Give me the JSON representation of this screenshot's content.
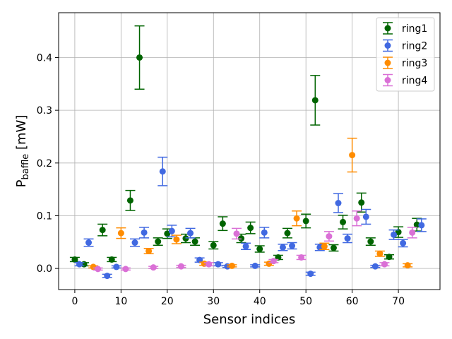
{
  "chart_data": {
    "type": "scatter",
    "xlabel": "Sensor indices",
    "ylabel_main": "P",
    "ylabel_sub": "baffle",
    "ylabel_unit": " [mW]",
    "xlim": [
      -3.5,
      79
    ],
    "ylim": [
      -0.04,
      0.485
    ],
    "x_ticks": [
      0,
      10,
      20,
      30,
      40,
      50,
      60,
      70
    ],
    "y_ticks": [
      0.0,
      0.1,
      0.2,
      0.3,
      0.4
    ],
    "y_tick_labels": [
      "0.0",
      "0.1",
      "0.2",
      "0.3",
      "0.4"
    ],
    "grid": true,
    "legend_position": "upper right",
    "series": [
      {
        "name": "ring1",
        "color": "#006400",
        "points": [
          [
            0,
            0.017,
            0.004
          ],
          [
            2,
            0.008,
            0.003
          ],
          [
            6,
            0.073,
            0.011
          ],
          [
            8,
            0.017,
            0.004
          ],
          [
            12,
            0.129,
            0.019
          ],
          [
            14,
            0.4,
            0.06
          ],
          [
            18,
            0.051,
            0.007
          ],
          [
            20,
            0.066,
            0.009
          ],
          [
            24,
            0.057,
            0.008
          ],
          [
            26,
            0.051,
            0.007
          ],
          [
            30,
            0.044,
            0.007
          ],
          [
            32,
            0.085,
            0.013
          ],
          [
            36,
            0.057,
            0.008
          ],
          [
            38,
            0.077,
            0.011
          ],
          [
            40,
            0.037,
            0.006
          ],
          [
            44,
            0.021,
            0.004
          ],
          [
            46,
            0.067,
            0.009
          ],
          [
            50,
            0.09,
            0.013
          ],
          [
            52,
            0.319,
            0.047
          ],
          [
            56,
            0.039,
            0.006
          ],
          [
            58,
            0.088,
            0.013
          ],
          [
            62,
            0.125,
            0.018
          ],
          [
            64,
            0.051,
            0.007
          ],
          [
            68,
            0.022,
            0.004
          ],
          [
            70,
            0.069,
            0.01
          ],
          [
            74,
            0.083,
            0.012
          ]
        ]
      },
      {
        "name": "ring2",
        "color": "#4169e1",
        "points": [
          [
            1,
            0.008,
            0.003
          ],
          [
            3,
            0.049,
            0.007
          ],
          [
            7,
            -0.014,
            0.003
          ],
          [
            9,
            0.003,
            0.002
          ],
          [
            13,
            0.049,
            0.007
          ],
          [
            15,
            0.068,
            0.01
          ],
          [
            19,
            0.184,
            0.027
          ],
          [
            21,
            0.071,
            0.011
          ],
          [
            25,
            0.067,
            0.009
          ],
          [
            27,
            0.016,
            0.004
          ],
          [
            31,
            0.008,
            0.003
          ],
          [
            33,
            0.004,
            0.002
          ],
          [
            37,
            0.042,
            0.006
          ],
          [
            39,
            0.005,
            0.002
          ],
          [
            41,
            0.068,
            0.01
          ],
          [
            45,
            0.04,
            0.006
          ],
          [
            47,
            0.043,
            0.006
          ],
          [
            51,
            -0.01,
            0.003
          ],
          [
            53,
            0.04,
            0.006
          ],
          [
            57,
            0.124,
            0.018
          ],
          [
            59,
            0.057,
            0.008
          ],
          [
            63,
            0.098,
            0.014
          ],
          [
            65,
            0.004,
            0.002
          ],
          [
            69,
            0.064,
            0.009
          ],
          [
            71,
            0.048,
            0.007
          ],
          [
            75,
            0.082,
            0.012
          ]
        ]
      },
      {
        "name": "ring3",
        "color": "#ff8c00",
        "points": [
          [
            4,
            0.003,
            0.002
          ],
          [
            10,
            0.067,
            0.01
          ],
          [
            16,
            0.033,
            0.005
          ],
          [
            22,
            0.055,
            0.008
          ],
          [
            28,
            0.009,
            0.003
          ],
          [
            34,
            0.005,
            0.002
          ],
          [
            42,
            0.009,
            0.003
          ],
          [
            48,
            0.095,
            0.014
          ],
          [
            54,
            0.042,
            0.006
          ],
          [
            60,
            0.215,
            0.032
          ],
          [
            66,
            0.028,
            0.005
          ],
          [
            72,
            0.006,
            0.003
          ]
        ]
      },
      {
        "name": "ring4",
        "color": "#da70d6",
        "points": [
          [
            5,
            -0.001,
            0.002
          ],
          [
            11,
            -0.001,
            0.002
          ],
          [
            17,
            0.002,
            0.002
          ],
          [
            23,
            0.004,
            0.002
          ],
          [
            29,
            0.008,
            0.003
          ],
          [
            35,
            0.066,
            0.01
          ],
          [
            43,
            0.014,
            0.003
          ],
          [
            49,
            0.021,
            0.004
          ],
          [
            55,
            0.061,
            0.009
          ],
          [
            61,
            0.095,
            0.014
          ],
          [
            67,
            0.008,
            0.003
          ],
          [
            73,
            0.068,
            0.01
          ]
        ]
      }
    ]
  }
}
